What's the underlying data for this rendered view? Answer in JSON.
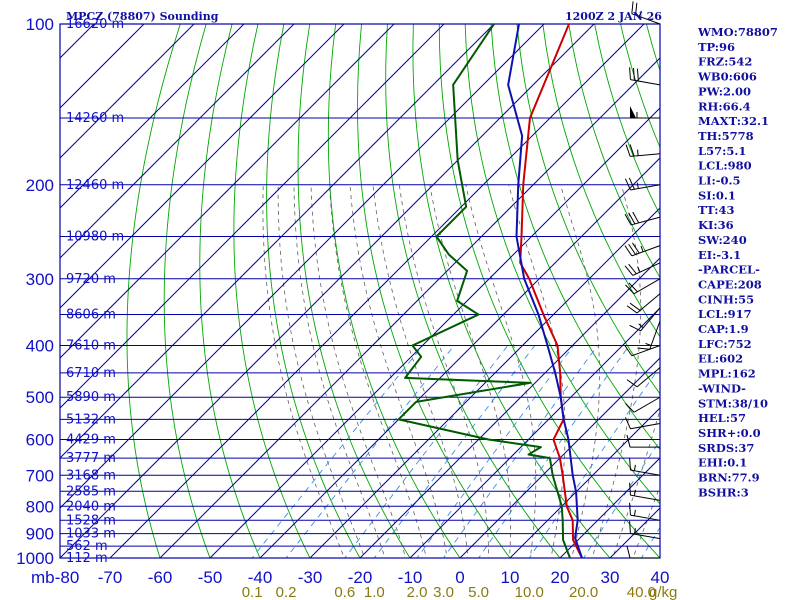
{
  "chart_data": {
    "type": "line",
    "title": "MPCZ (78807) Sounding",
    "datetime": "1200Z  2 JAN 26",
    "pressure_unit": "mb",
    "mixing_unit": "g/kg",
    "pressure_levels": [
      100,
      200,
      300,
      400,
      500,
      600,
      700,
      800,
      900,
      1000
    ],
    "temperature_ticks": [
      -80,
      -70,
      -60,
      -50,
      -40,
      -30,
      -20,
      -10,
      0,
      10,
      20,
      30,
      40
    ],
    "mixing_ratio_labels": [
      "0.1",
      "0.2",
      "0.6",
      "1.0",
      "2.0",
      "3.0",
      "5.0",
      "10.0",
      "20.0",
      "40.0"
    ],
    "mixing_ratio_values": [
      0.1,
      0.2,
      0.6,
      1.0,
      2.0,
      3.0,
      5.0,
      10.0,
      20.0,
      40.0
    ],
    "height_labels": [
      {
        "p": 100,
        "label": "16620 m"
      },
      {
        "p": 150,
        "label": "14260 m"
      },
      {
        "p": 200,
        "label": "12460 m"
      },
      {
        "p": 250,
        "label": "10980 m"
      },
      {
        "p": 300,
        "label": "9720 m"
      },
      {
        "p": 350,
        "label": "8606 m"
      },
      {
        "p": 400,
        "label": "7610 m"
      },
      {
        "p": 450,
        "label": "6710 m"
      },
      {
        "p": 500,
        "label": "5890 m"
      },
      {
        "p": 550,
        "label": "5132 m"
      },
      {
        "p": 600,
        "label": "4429 m"
      },
      {
        "p": 650,
        "label": "3777 m"
      },
      {
        "p": 700,
        "label": "3168 m"
      },
      {
        "p": 750,
        "label": "2585 m"
      },
      {
        "p": 800,
        "label": "2040 m"
      },
      {
        "p": 850,
        "label": "1528 m"
      },
      {
        "p": 900,
        "label": "1033 m"
      },
      {
        "p": 950,
        "label": "562 m"
      },
      {
        "p": 1000,
        "label": "112 m"
      }
    ],
    "series": [
      {
        "key": "temperature",
        "color": "#cc0000",
        "points": [
          [
            1000,
            24.4
          ],
          [
            925,
            19
          ],
          [
            850,
            15
          ],
          [
            800,
            11
          ],
          [
            700,
            4
          ],
          [
            650,
            0
          ],
          [
            600,
            -5
          ],
          [
            550,
            -7
          ],
          [
            500,
            -12
          ],
          [
            450,
            -17
          ],
          [
            400,
            -23
          ],
          [
            350,
            -32
          ],
          [
            300,
            -42
          ],
          [
            280,
            -47
          ],
          [
            250,
            -52
          ],
          [
            200,
            -62
          ],
          [
            150,
            -74
          ],
          [
            100,
            -85
          ]
        ]
      },
      {
        "key": "dewpoint",
        "color": "#005a00",
        "points": [
          [
            1000,
            22
          ],
          [
            925,
            17
          ],
          [
            850,
            13
          ],
          [
            800,
            10
          ],
          [
            700,
            2
          ],
          [
            650,
            -2
          ],
          [
            640,
            -7
          ],
          [
            620,
            -6
          ],
          [
            600,
            -18
          ],
          [
            550,
            -40
          ],
          [
            510,
            -40
          ],
          [
            470,
            -21
          ],
          [
            460,
            -47
          ],
          [
            420,
            -48
          ],
          [
            400,
            -52
          ],
          [
            350,
            -45
          ],
          [
            330,
            -52
          ],
          [
            290,
            -56
          ],
          [
            270,
            -63
          ],
          [
            250,
            -69
          ],
          [
            220,
            -69
          ],
          [
            180,
            -80
          ],
          [
            130,
            -96
          ],
          [
            100,
            -100
          ]
        ]
      },
      {
        "key": "parcel",
        "color": "#1010b0",
        "points": [
          [
            1000,
            24.4
          ],
          [
            917,
            19
          ],
          [
            850,
            16
          ],
          [
            752,
            10
          ],
          [
            700,
            6
          ],
          [
            600,
            -2
          ],
          [
            550,
            -7
          ],
          [
            500,
            -12
          ],
          [
            450,
            -18
          ],
          [
            400,
            -25
          ],
          [
            350,
            -33
          ],
          [
            300,
            -43
          ],
          [
            250,
            -53
          ],
          [
            200,
            -63
          ],
          [
            162,
            -72
          ],
          [
            130,
            -85
          ],
          [
            100,
            -95
          ]
        ]
      }
    ],
    "winds": [
      {
        "p": 100,
        "dir": 290,
        "spd": 25
      },
      {
        "p": 130,
        "dir": 280,
        "spd": 30
      },
      {
        "p": 150,
        "dir": 270,
        "spd": 55
      },
      {
        "p": 175,
        "dir": 265,
        "spd": 25
      },
      {
        "p": 200,
        "dir": 260,
        "spd": 25
      },
      {
        "p": 230,
        "dir": 255,
        "spd": 30
      },
      {
        "p": 260,
        "dir": 250,
        "spd": 35
      },
      {
        "p": 280,
        "dir": 245,
        "spd": 25
      },
      {
        "p": 300,
        "dir": 240,
        "spd": 20
      },
      {
        "p": 320,
        "dir": 230,
        "spd": 20
      },
      {
        "p": 340,
        "dir": 220,
        "spd": 15
      },
      {
        "p": 360,
        "dir": 200,
        "spd": 15
      },
      {
        "p": 400,
        "dir": 250,
        "spd": 10
      },
      {
        "p": 440,
        "dir": 230,
        "spd": 10
      },
      {
        "p": 500,
        "dir": 240,
        "spd": 10
      },
      {
        "p": 560,
        "dir": 260,
        "spd": 10
      },
      {
        "p": 620,
        "dir": 270,
        "spd": 10
      },
      {
        "p": 700,
        "dir": 280,
        "spd": 15
      },
      {
        "p": 780,
        "dir": 280,
        "spd": 15
      },
      {
        "p": 850,
        "dir": 280,
        "spd": 15
      },
      {
        "p": 920,
        "dir": 280,
        "spd": 15
      },
      {
        "p": 1000,
        "dir": 270,
        "spd": 10
      }
    ]
  },
  "indices": [
    "WMO:78807",
    "TP:96",
    "FRZ:542",
    "WB0:606",
    "PW:2.00",
    "RH:66.4",
    "MAXT:32.1",
    "TH:5778",
    "L57:5.1",
    "LCL:980",
    "LI:-0.5",
    "SI:0.1",
    "TT:43",
    "KI:36",
    "SW:240",
    "EI:-3.1",
    "-PARCEL-",
    "CAPE:208",
    "CINH:55",
    "LCL:917",
    "CAP:1.9",
    "LFC:752",
    "EL:602",
    "MPL:162",
    "-WIND-",
    "STM:38/10",
    "HEL:57",
    "SHR+:0.0",
    "SRDS:37",
    "EHI:0.1",
    "BRN:77.9",
    "BSHR:3"
  ],
  "colors": {
    "frame": "#0000a8",
    "isotherm": "#0000a8",
    "dry_adiabat": "#00a800",
    "moist_adiabat": "#606060",
    "mixing_ratio": "#3c8ce6",
    "label": "#1010c8",
    "mixing_label": "#8a7a10"
  }
}
